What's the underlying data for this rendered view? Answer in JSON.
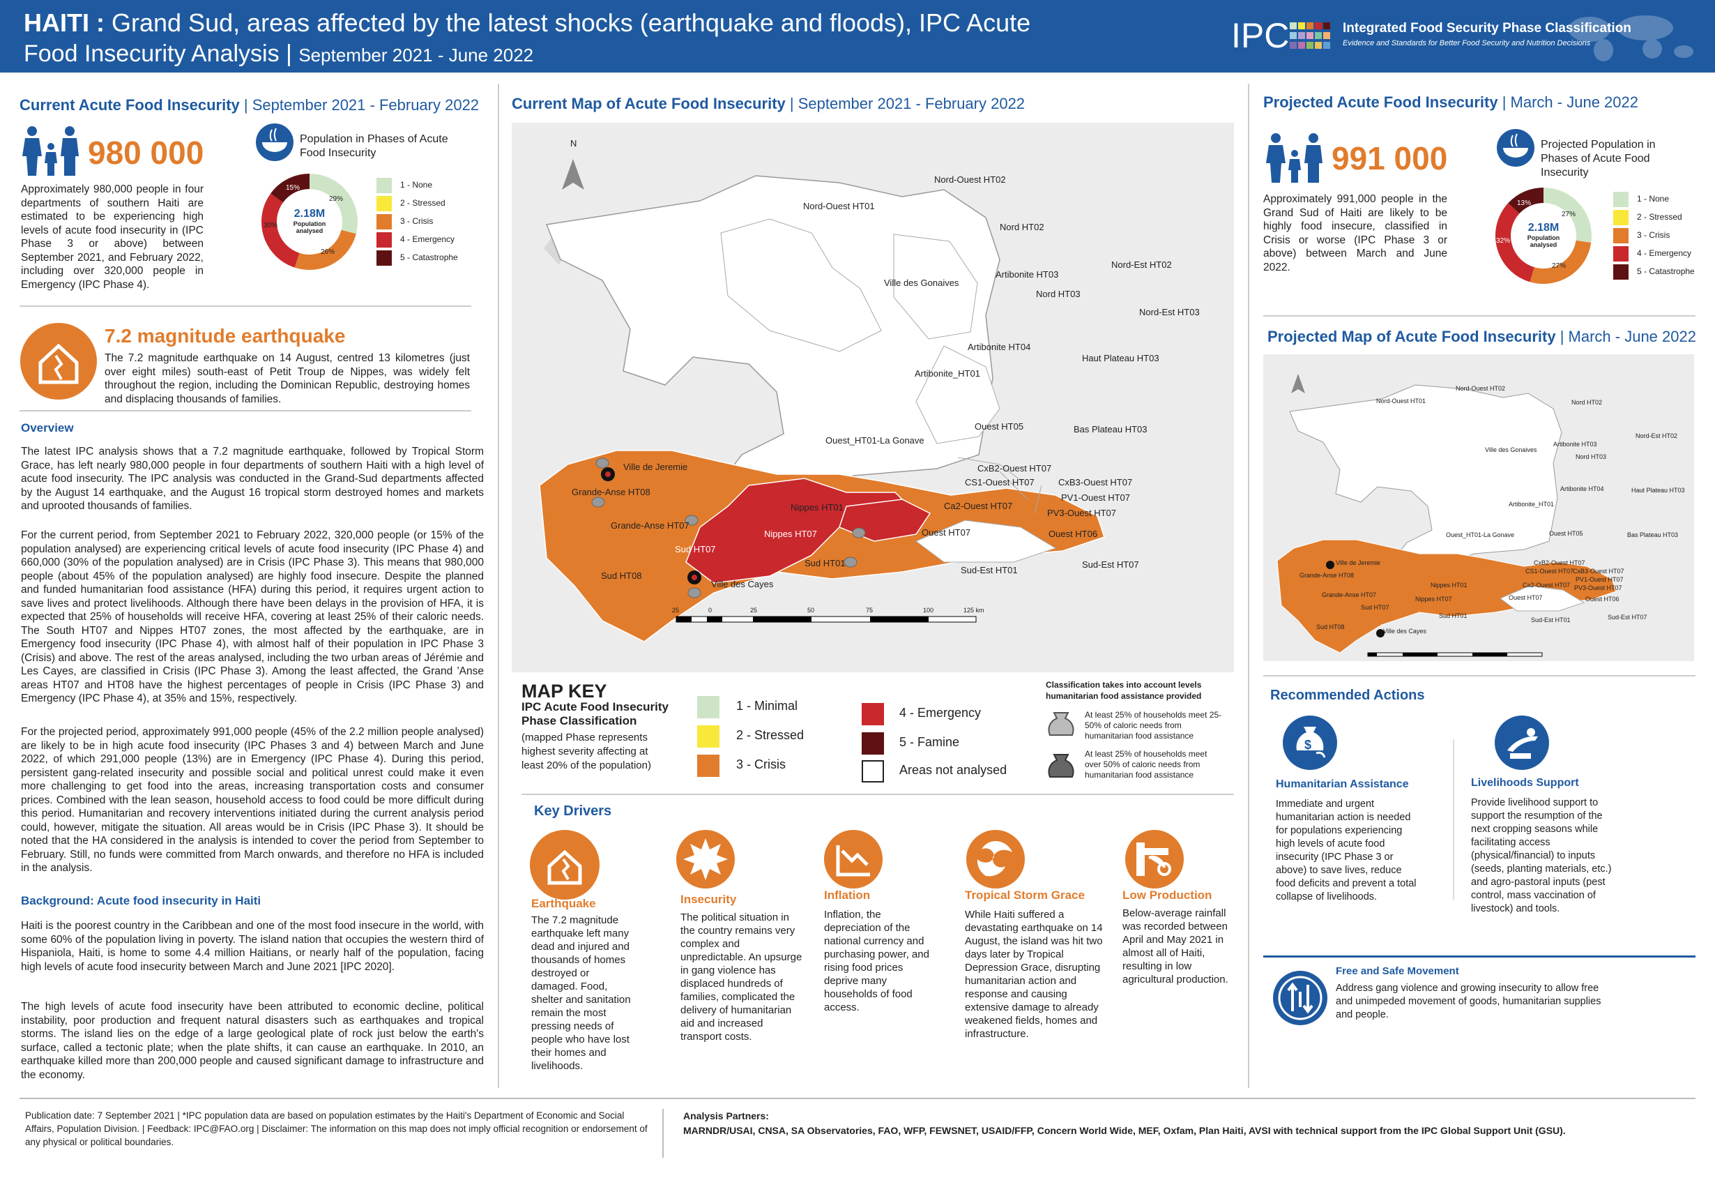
{
  "header": {
    "title_country": "HAITI :",
    "title_line1": "Grand Sud, areas affected by the latest shocks (earthquake and floods), IPC Acute",
    "title_line2": "Food Insecurity Analysis |",
    "title_period": "September 2021 - June 2022",
    "logo_text": "IPC",
    "logo_name": "Integrated Food Security Phase Classification",
    "logo_tagline": "Evidence and Standards for Better Food Security and Nutrition Decisions"
  },
  "current": {
    "heading": "Current Acute Food Insecurity",
    "period": "| September 2021 - February 2022",
    "number": "980 000",
    "description": "Approximately 980,000 people in four departments of southern Haiti are estimated to be experiencing high levels of acute food insecurity in (IPC Phase 3 or above) between September 2021, and February 2022, including over 320,000 people in Emergency (IPC Phase 4).",
    "pop_title": "Population in Phases of Acute Food Insecurity",
    "donut_total": "2.18M",
    "donut_sub": "Population analysed",
    "donut_values": [
      29,
      0,
      26,
      30,
      15
    ],
    "donut_labels": [
      "29%",
      "26%",
      "30%",
      "15%"
    ]
  },
  "phase_legend": [
    "1 - None",
    "2 - Stressed",
    "3 - Crisis",
    "4 - Emergency",
    "5 - Catastrophe"
  ],
  "phase_colors": [
    "#cde5c6",
    "#f8e839",
    "#e17c2c",
    "#c9282d",
    "#5e1112"
  ],
  "earthquake": {
    "title": "7.2 magnitude earthquake",
    "text": "The 7.2 magnitude earthquake on 14 August, centred 13 kilometres (just over eight miles) south-east of Petit Troup de Nippes, was widely felt throughout the region, including the Dominican Republic, destroying homes and displacing thousands of families."
  },
  "overview": {
    "heading": "Overview",
    "p1": "The latest IPC analysis shows that a 7.2 magnitude earthquake, followed by Tropical Storm Grace, has left nearly 980,000 people in four departments of southern Haiti with a high level of acute food insecurity. The IPC analysis was conducted in the Grand-Sud departments affected by the August 14 earthquake, and the August 16 tropical storm destroyed homes and markets and uprooted thousands of families.",
    "p2": "For the current period, from September 2021 to February 2022, 320,000 people (or 15% of the population analysed) are experiencing critical levels of acute food insecurity (IPC Phase 4) and 660,000 (30% of the population analysed) are in Crisis (IPC Phase 3). This means that 980,000 people (about 45% of the population analysed) are highly food insecure. Despite the planned and funded humanitarian food assistance (HFA) during this period, it requires urgent action to save lives and protect livelihoods. Although there have been delays in the provision of HFA, it is expected that 25% of households will receive HFA, covering at least 25% of their caloric needs. The South HT07 and Nippes HT07 zones, the most affected by the earthquake, are in Emergency food insecurity (IPC Phase 4), with almost half of their population in IPC Phase 3 (Crisis) and above. The rest of the areas analysed, including the two urban areas of Jérémie and Les Cayes, are classified in Crisis (IPC Phase 3). Among the least affected, the Grand 'Anse areas HT07 and HT08 have the highest percentages of people in Crisis (IPC Phase 3) and Emergency (IPC Phase 4), at 35% and 15%, respectively.",
    "p3": "For the projected period, approximately 991,000 people (45% of the 2.2 million people analysed) are likely to be in high acute food insecurity (IPC Phases 3 and 4) between March and June 2022, of which 291,000 people (13%) are in Emergency (IPC Phase 4). During this period, persistent gang-related insecurity and possible social and political unrest could make it even more challenging to get food into the areas, increasing transportation costs and consumer prices. Combined with the lean season, household access to food could be more difficult during this period. Humanitarian and recovery interventions initiated during the current analysis period could, however, mitigate the situation. All areas would be in Crisis (IPC Phase 3). It should be noted that the HA considered in the analysis is intended to cover the period from September to February. Still, no funds were committed from March onwards, and therefore no HFA is included in the analysis."
  },
  "background": {
    "heading": "Background: Acute food insecurity in Haiti",
    "p1": "Haiti is the poorest country in the Caribbean and one of the most food insecure in the world, with some 60% of the population living in poverty. The island nation that occupies the western third of Hispaniola, Haiti, is home to some 4.4 million Haitians, or nearly half of the population, facing high levels of acute food insecurity between March and June 2021 [IPC 2020].",
    "p2": "The high levels of acute food insecurity have been attributed to economic decline, political instability, poor production and frequent natural disasters such as earthquakes and tropical storms. The island lies on the edge of a large geological plate of rock just below the earth's surface, called a tectonic plate; when the plate shifts, it can cause an earthquake. In 2010, an earthquake killed more than 200,000 people and caused significant damage to infrastructure and the economy."
  },
  "current_map": {
    "heading": "Current Map of Acute Food Insecurity",
    "period": "| September 2021 - February 2022",
    "labels": [
      "Nord-Ouest HT02",
      "Nord-Ouest HT01",
      "Nord HT02",
      "Nord-Est HT02",
      "Artibonite HT03",
      "Ville des Gonaives",
      "Nord HT03",
      "Nord-Est HT03",
      "Artibonite HT04",
      "Haut Plateau HT03",
      "Artibonite_HT01",
      "Ouest HT05",
      "Bas Plateau HT03",
      "Ouest_HT01-La Gonave",
      "Ville de Jeremie",
      "CxB2-Ouest HT07",
      "CS1-Ouest HT07",
      "CxB3-Ouest HT07",
      "Grande-Anse HT08",
      "PV1-Ouest HT07",
      "Nippes HT01",
      "Ca2-Ouest HT07",
      "PV3-Ouest HT07",
      "Grande-Anse HT07",
      "Nippes HT07",
      "Ouest HT07",
      "Ouest HT06",
      "Sud HT07",
      "Sud HT01",
      "Sud-Est HT01",
      "Sud-Est HT07",
      "Sud HT08",
      "Ville des Cayes"
    ],
    "scale": [
      "25",
      "0",
      "25",
      "50",
      "75",
      "100",
      "125 km"
    ]
  },
  "map_key": {
    "title": "MAP KEY",
    "subtitle": "IPC Acute Food Insecurity Phase Classification",
    "note": "(mapped Phase represents highest severity affecting at least 20%  of the population)",
    "items": [
      "1 - Minimal",
      "2 - Stressed",
      "3 - Crisis",
      "4 - Emergency",
      "5 - Famine",
      "Areas not analysed"
    ],
    "hfa_title": "Classification takes into account levels humanitarian food assistance provided",
    "hfa1": "At least 25% of households meet 25-50% of caloric needs from humanitarian food assistance",
    "hfa2": "At least 25% of households meet over 50% of caloric needs from humanitarian food assistance"
  },
  "key_drivers": {
    "heading": "Key Drivers",
    "items": [
      {
        "title": "Earthquake",
        "text": "The 7.2 magnitude earthquake left many dead and injured and thousands of homes destroyed or damaged. Food, shelter and sanitation remain the most pressing needs of people who have lost their homes and livelihoods."
      },
      {
        "title": "Insecurity",
        "text": "The political situation in the country remains very complex and unpredictable. An upsurge in gang violence has displaced hundreds of families, complicated the delivery of humanitarian aid and increased transport costs."
      },
      {
        "title": "Inflation",
        "text": "Inflation, the depreciation of the national currency and purchasing power, and rising food prices deprive many households of food access."
      },
      {
        "title": "Tropical Storm Grace",
        "text": "While Haiti suffered a devastating earthquake on 14 August, the island was hit two days later by Tropical Depression Grace, disrupting humanitarian action and response and causing extensive damage to already weakened fields, homes and infrastructure."
      },
      {
        "title": "Low Production",
        "text": "Below-average rainfall was recorded between April and May 2021 in almost all of Haiti, resulting in low agricultural production."
      }
    ]
  },
  "projected": {
    "heading": "Projected Acute Food Insecurity",
    "period": "|  March - June 2022",
    "number": "991 000",
    "description": "Approximately 991,000 people in the Grand Sud of Haiti are likely to be highly food insecure, classified in Crisis or worse (IPC Phase 3 or above) between March and June 2022.",
    "pop_title": "Projected Population in Phases of Acute Food Insecurity",
    "donut_total": "2.18M",
    "donut_sub": "Population analysed",
    "donut_values": [
      27,
      0,
      27,
      32,
      13
    ],
    "donut_labels": [
      "27%",
      "27%",
      "32%",
      "13%"
    ]
  },
  "projected_map": {
    "heading": "Projected Map of Acute Food Insecurity",
    "period": "|  March - June 2022"
  },
  "recommended": {
    "heading": "Recommended Actions",
    "items": [
      {
        "title": "Humanitarian Assistance",
        "text": "Immediate and urgent humanitarian action is needed for populations experiencing high levels of acute food insecurity (IPC Phase 3 or above) to save lives, reduce food deficits and prevent a total collapse of livelihoods."
      },
      {
        "title": "Livelihoods Support",
        "text": "Provide livelihood support to support the resumption of the next cropping seasons while facilitating access (physical/financial) to inputs (seeds, planting materials, etc.) and agro-pastoral inputs (pest control, mass vaccination of livestock) and tools."
      },
      {
        "title": "Free and Safe Movement",
        "text": "Address gang violence and growing insecurity to allow free and unimpeded movement of goods, humanitarian supplies and people."
      }
    ]
  },
  "footer": {
    "publication": "Publication date: 7 September 2021 | *IPC population data are based on population estimates by the Haiti's Department of Economic and Social Affairs, Population Division. | Feedback: IPC@FAO.org | Disclaimer: The information on this map does not imply official recognition or endorsement of any physical or political boundaries.",
    "partners_title": "Analysis Partners:",
    "partners": "MARNDR/USAI, CNSA, SA Observatories, FAO, WFP, FEWSNET, USAID/FFP, Concern World Wide, MEF, Oxfam, Plan Haiti, AVSI with technical support from the IPC Global Support Unit (GSU)."
  }
}
